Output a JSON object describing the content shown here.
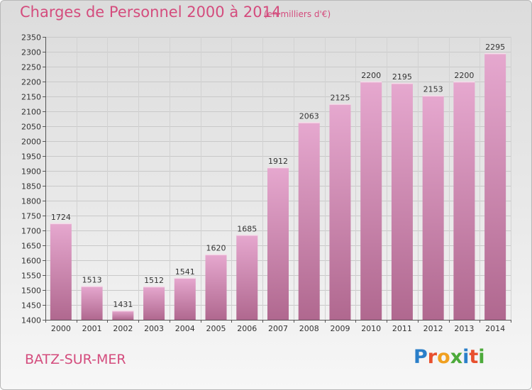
{
  "header": {
    "title": "Charges de Personnel 2000 à 2014",
    "subtitle": "(en milliers d'€)"
  },
  "footer": {
    "city": "BATZ-SUR-MER",
    "logo_text": "Proxiti",
    "logo_letters": [
      {
        "char": "P",
        "color": "#2a7fc9"
      },
      {
        "char": "r",
        "color": "#e8502e"
      },
      {
        "char": "o",
        "color": "#f0a020"
      },
      {
        "char": "x",
        "color": "#4caa3a"
      },
      {
        "char": "i",
        "color": "#2a7fc9"
      },
      {
        "char": "t",
        "color": "#e8502e"
      },
      {
        "char": "i",
        "color": "#4caa3a"
      }
    ]
  },
  "colors": {
    "accent": "#d44c7d",
    "bar_top": "#e6a8cf",
    "bar_bottom": "#b0688f"
  },
  "chart_data": {
    "type": "bar",
    "title": "Charges de Personnel 2000 à 2014",
    "unit": "(en milliers d'€)",
    "categories": [
      "2000",
      "2001",
      "2002",
      "2003",
      "2004",
      "2005",
      "2006",
      "2007",
      "2008",
      "2009",
      "2010",
      "2011",
      "2012",
      "2013",
      "2014"
    ],
    "values": [
      1724,
      1513,
      1431,
      1512,
      1541,
      1620,
      1685,
      1912,
      2063,
      2125,
      2200,
      2195,
      2153,
      2200,
      2295
    ],
    "ylim": [
      1400,
      2350
    ],
    "yticks": [
      1400,
      1450,
      1500,
      1550,
      1600,
      1650,
      1700,
      1750,
      1800,
      1850,
      1900,
      1950,
      2000,
      2050,
      2100,
      2150,
      2200,
      2250,
      2300,
      2350
    ],
    "grid": true
  }
}
